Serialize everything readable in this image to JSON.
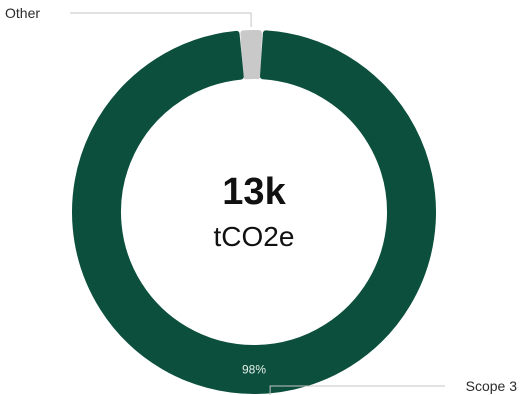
{
  "chart_data": {
    "type": "pie",
    "variant": "donut",
    "center_value": "13k",
    "center_unit": "tCO2e",
    "slices": [
      {
        "label": "Scope 3",
        "share": 98,
        "value_label": "98%",
        "color": "#0b4f3c"
      },
      {
        "label": "Other",
        "share": 2,
        "value_label": "",
        "color": "#c9c9c9"
      }
    ],
    "legend": "callout-labels"
  }
}
